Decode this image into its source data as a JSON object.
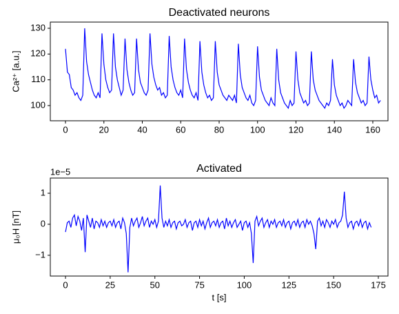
{
  "chart_data": [
    {
      "type": "line",
      "title": "Deactivated neurons",
      "ylabel": "Ca²⁺ [a.u.]",
      "color": "#0000ff",
      "x": [
        0,
        1,
        2,
        3,
        4,
        5,
        6,
        7,
        8,
        9,
        10,
        11,
        12,
        13,
        14,
        15,
        16,
        17,
        18,
        19,
        20,
        21,
        22,
        23,
        24,
        25,
        26,
        27,
        28,
        29,
        30,
        31,
        32,
        33,
        34,
        35,
        36,
        37,
        38,
        39,
        40,
        41,
        42,
        43,
        44,
        45,
        46,
        47,
        48,
        49,
        50,
        51,
        52,
        53,
        54,
        55,
        56,
        57,
        58,
        59,
        60,
        61,
        62,
        63,
        64,
        65,
        66,
        67,
        68,
        69,
        70,
        71,
        72,
        73,
        74,
        75,
        76,
        77,
        78,
        79,
        80,
        81,
        82,
        83,
        84,
        85,
        86,
        87,
        88,
        89,
        90,
        91,
        92,
        93,
        94,
        95,
        96,
        97,
        98,
        99,
        100,
        101,
        102,
        103,
        104,
        105,
        106,
        107,
        108,
        109,
        110,
        111,
        112,
        113,
        114,
        115,
        116,
        117,
        118,
        119,
        120,
        121,
        122,
        123,
        124,
        125,
        126,
        127,
        128,
        129,
        130,
        131,
        132,
        133,
        134,
        135,
        136,
        137,
        138,
        139,
        140,
        141,
        142,
        143,
        144,
        145,
        146,
        147,
        148,
        149,
        150,
        151,
        152,
        153,
        154,
        155,
        156,
        157,
        158,
        159,
        160,
        161,
        162,
        163,
        164
      ],
      "values": [
        122,
        113,
        112,
        107,
        106,
        104,
        105,
        103,
        102,
        104,
        130,
        117,
        112,
        109,
        106,
        104,
        103,
        105,
        103,
        128,
        116,
        110,
        107,
        105,
        106,
        128,
        115,
        110,
        107,
        104,
        106,
        126,
        114,
        109,
        106,
        104,
        105,
        126,
        114,
        109,
        107,
        105,
        104,
        106,
        128,
        116,
        111,
        108,
        106,
        107,
        104,
        105,
        103,
        104,
        127,
        115,
        110,
        107,
        105,
        104,
        106,
        103,
        126,
        114,
        109,
        106,
        104,
        103,
        105,
        102,
        125,
        113,
        108,
        105,
        103,
        104,
        102,
        103,
        125,
        113,
        108,
        106,
        104,
        103,
        102,
        104,
        103,
        102,
        104,
        101,
        124,
        112,
        107,
        105,
        103,
        102,
        104,
        101,
        100,
        102,
        123,
        111,
        106,
        104,
        102,
        101,
        100,
        103,
        101,
        100,
        122,
        110,
        105,
        103,
        101,
        100,
        99,
        102,
        100,
        101,
        121,
        110,
        105,
        103,
        101,
        102,
        100,
        101,
        121,
        110,
        106,
        104,
        102,
        101,
        100,
        99,
        101,
        100,
        102,
        118,
        108,
        104,
        102,
        100,
        101,
        99,
        100,
        102,
        101,
        100,
        118,
        109,
        105,
        103,
        101,
        102,
        100,
        101,
        119,
        110,
        106,
        103,
        104,
        101,
        102
      ],
      "xlim": [
        -7.9,
        167.9
      ],
      "xticks": [
        0,
        20,
        40,
        60,
        80,
        100,
        120,
        140,
        160
      ],
      "ylim": [
        94.1,
        132.4
      ],
      "yticks": [
        100,
        110,
        120,
        130
      ]
    },
    {
      "type": "line",
      "title": "Activated",
      "ylabel": "μ₀H [nT]",
      "xlabel": "t [s]",
      "offset_label": "1e−5",
      "color": "#0000ff",
      "x": [
        0,
        1,
        2,
        3,
        4,
        5,
        6,
        7,
        8,
        9,
        10,
        11,
        12,
        13,
        14,
        15,
        16,
        17,
        18,
        19,
        20,
        21,
        22,
        23,
        24,
        25,
        26,
        27,
        28,
        29,
        30,
        31,
        32,
        33,
        34,
        35,
        36,
        37,
        38,
        39,
        40,
        41,
        42,
        43,
        44,
        45,
        46,
        47,
        48,
        49,
        50,
        51,
        52,
        53,
        54,
        55,
        56,
        57,
        58,
        59,
        60,
        61,
        62,
        63,
        64,
        65,
        66,
        67,
        68,
        69,
        70,
        71,
        72,
        73,
        74,
        75,
        76,
        77,
        78,
        79,
        80,
        81,
        82,
        83,
        84,
        85,
        86,
        87,
        88,
        89,
        90,
        91,
        92,
        93,
        94,
        95,
        96,
        97,
        98,
        99,
        100,
        101,
        102,
        103,
        104,
        105,
        106,
        107,
        108,
        109,
        110,
        111,
        112,
        113,
        114,
        115,
        116,
        117,
        118,
        119,
        120,
        121,
        122,
        123,
        124,
        125,
        126,
        127,
        128,
        129,
        130,
        131,
        132,
        133,
        134,
        135,
        136,
        137,
        138,
        139,
        140,
        141,
        142,
        143,
        144,
        145,
        146,
        147,
        148,
        149,
        150,
        151,
        152,
        153,
        154,
        155,
        156,
        157,
        158,
        159,
        160,
        161,
        162,
        163,
        164,
        165,
        166,
        167,
        168,
        169,
        170,
        171
      ],
      "values": [
        -0.25,
        0.05,
        0.1,
        -0.1,
        0.2,
        0.3,
        -0.05,
        0.25,
        0.1,
        -0.2,
        0.2,
        -0.9,
        0.3,
        0.1,
        -0.1,
        0.2,
        -0.15,
        0.1,
        0.05,
        -0.1,
        0.15,
        -0.05,
        0.1,
        -0.1,
        0.05,
        0.1,
        -0.05,
        0.15,
        -0.1,
        0.05,
        0.1,
        -0.15,
        0.2,
        0.05,
        -0.3,
        -1.55,
        -0.1,
        0.2,
        -0.05,
        0.1,
        0.2,
        -0.1,
        0.05,
        0.25,
        -0.05,
        0.1,
        0.2,
        -0.1,
        0.1,
        0.0,
        0.15,
        -0.1,
        0.1,
        1.25,
        0.2,
        -0.1,
        0.1,
        -0.05,
        0.15,
        -0.1,
        0.05,
        0.1,
        -0.15,
        0.05,
        0.1,
        -0.05,
        0.0,
        0.15,
        -0.1,
        0.05,
        0.1,
        -0.2,
        0.05,
        0.1,
        -0.1,
        0.15,
        -0.05,
        0.1,
        -0.15,
        0.05,
        0.2,
        -0.1,
        0.05,
        0.1,
        -0.05,
        0.15,
        -0.1,
        0.05,
        0.1,
        -0.15,
        0.2,
        -0.05,
        0.1,
        -0.1,
        0.05,
        0.15,
        -0.1,
        0.0,
        0.1,
        -0.2,
        0.05,
        0.1,
        -0.1,
        0.05,
        -0.3,
        -1.25,
        0.1,
        0.25,
        -0.05,
        0.1,
        0.2,
        -0.1,
        0.05,
        0.15,
        -0.1,
        0.1,
        0.0,
        0.15,
        -0.1,
        0.05,
        0.1,
        -0.05,
        0.15,
        -0.1,
        0.05,
        0.1,
        -0.15,
        0.05,
        0.1,
        -0.05,
        0.15,
        -0.1,
        0.05,
        0.1,
        -0.1,
        0.15,
        0.0,
        0.1,
        -0.05,
        -0.3,
        -0.8,
        0.1,
        0.2,
        -0.05,
        0.1,
        -0.1,
        0.15,
        0.05,
        -0.1,
        0.1,
        0.0,
        0.15,
        -0.1,
        0.05,
        0.1,
        0.3,
        1.05,
        0.2,
        -0.1,
        0.05,
        0.1,
        -0.15,
        0.05,
        0.1,
        -0.05,
        0.15,
        -0.1,
        0.05,
        0.1,
        -0.15,
        0.05,
        -0.1
      ],
      "xlim": [
        -8.5,
        180.4
      ],
      "xticks": [
        0,
        25,
        50,
        75,
        100,
        125,
        150,
        175
      ],
      "ylim": [
        -1.67,
        1.49
      ],
      "yticks": [
        {
          "value": -1,
          "label": "−1"
        },
        0,
        1
      ]
    }
  ]
}
